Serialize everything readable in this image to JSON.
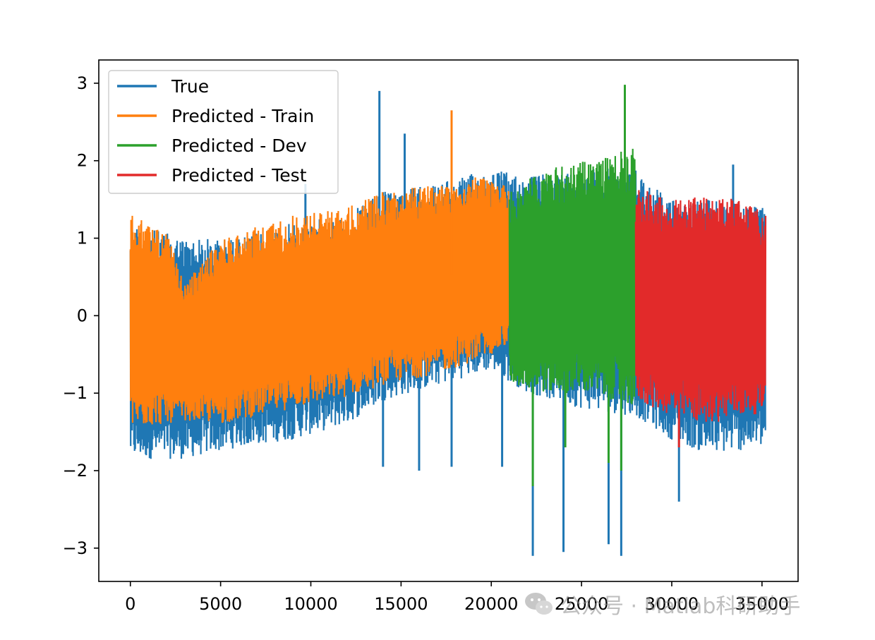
{
  "chart_data": {
    "type": "line",
    "title": "",
    "xlabel": "",
    "ylabel": "",
    "xlim": [
      -1750,
      37000
    ],
    "ylim": [
      -3.43,
      3.3
    ],
    "x_ticks": [
      0,
      5000,
      10000,
      15000,
      20000,
      25000,
      30000,
      35000
    ],
    "x_tick_labels": [
      "0",
      "5000",
      "10000",
      "15000",
      "20000",
      "25000",
      "30000",
      "35000"
    ],
    "y_ticks": [
      3,
      2,
      1,
      0,
      -1,
      -2,
      -3
    ],
    "y_tick_labels": [
      "3",
      "2",
      "1",
      "0",
      "−1",
      "−2",
      "−3"
    ],
    "grid": false,
    "legend_position": "upper-left",
    "note": "Dense oscillating signals; values given as approximate upper/lower envelope points plus visible spikes.",
    "series": [
      {
        "name": "True",
        "color": "#1f77b4",
        "x_range": [
          0,
          35200
        ],
        "envelope_x": [
          0,
          3000,
          6000,
          9000,
          12000,
          14000,
          17000,
          20000,
          22000,
          25000,
          28000,
          30000,
          32000,
          35200
        ],
        "upper": [
          1.2,
          1.0,
          1.0,
          1.2,
          1.3,
          1.6,
          1.7,
          1.9,
          1.8,
          1.9,
          1.9,
          1.5,
          1.5,
          1.4
        ],
        "lower": [
          -1.85,
          -1.85,
          -1.7,
          -1.6,
          -1.4,
          -1.1,
          -0.9,
          -0.7,
          -1.0,
          -1.2,
          -1.3,
          -1.6,
          -1.8,
          -1.7
        ],
        "spikes_x": [
          9700,
          13800,
          14000,
          15200,
          16000,
          17800,
          20600,
          22300,
          24000,
          26500,
          27200,
          30400,
          33400
        ],
        "spikes_y": [
          1.7,
          2.9,
          -1.95,
          2.35,
          -2.0,
          -1.95,
          -1.95,
          -3.1,
          -3.05,
          -2.95,
          -3.1,
          -2.4,
          1.95
        ]
      },
      {
        "name": "Predicted - Train",
        "color": "#ff7f0e",
        "x_range": [
          0,
          21000
        ],
        "envelope_x": [
          0,
          2000,
          3000,
          5000,
          9000,
          12000,
          14000,
          17000,
          19000,
          21000
        ],
        "upper": [
          1.3,
          1.1,
          0.4,
          1.0,
          1.3,
          1.4,
          1.6,
          1.7,
          1.8,
          1.7
        ],
        "lower": [
          -1.45,
          -1.4,
          -1.35,
          -1.4,
          -1.2,
          -1.05,
          -0.9,
          -0.75,
          -0.6,
          -0.4
        ],
        "spikes_x": [
          17800
        ],
        "spikes_y": [
          2.65
        ]
      },
      {
        "name": "Predicted - Dev",
        "color": "#2ca02c",
        "x_range": [
          21000,
          28000
        ],
        "envelope_x": [
          21000,
          23000,
          25000,
          27000,
          28000
        ],
        "upper": [
          1.6,
          1.9,
          2.0,
          2.1,
          2.2
        ],
        "lower": [
          -0.9,
          -1.0,
          -1.0,
          -1.1,
          -1.2
        ],
        "spikes_x": [
          22300,
          24100,
          26500,
          27400,
          27200
        ],
        "spikes_y": [
          -2.2,
          -1.7,
          -1.9,
          2.98,
          -2.0
        ]
      },
      {
        "name": "Predicted - Test",
        "color": "#e22a2a",
        "x_range": [
          28000,
          35200
        ],
        "envelope_x": [
          28000,
          30000,
          32000,
          34000,
          35200
        ],
        "upper": [
          1.7,
          1.5,
          1.55,
          1.5,
          1.3
        ],
        "lower": [
          -1.1,
          -1.3,
          -1.4,
          -1.3,
          -1.25
        ],
        "spikes_x": [
          30400
        ],
        "spikes_y": [
          -1.7
        ]
      }
    ]
  },
  "watermark": {
    "text": "公众号 · Matlab科研助手",
    "icon": "wechat-icon"
  }
}
